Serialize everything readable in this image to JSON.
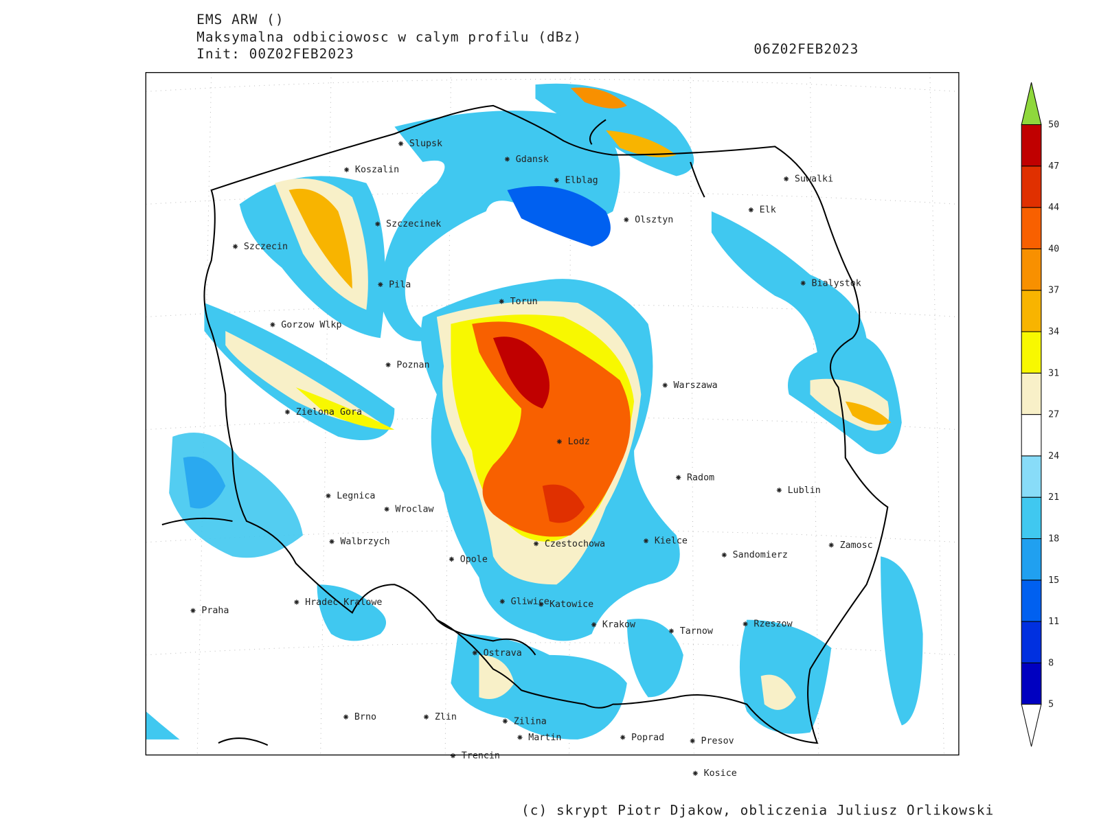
{
  "header": {
    "model": "EMS ARW ()",
    "product": "Maksymalna odbiciowosc w calym profilu (dBz)",
    "init": "Init: 00Z02FEB2023",
    "valid_time": "06Z02FEB2023"
  },
  "map": {
    "cities": [
      "Slupsk",
      "Koszalin",
      "Gdansk",
      "Elblag",
      "Suwalki",
      "Elk",
      "Olsztyn",
      "Szczecinek",
      "Szczecin",
      "Bialystok",
      "Pila",
      "Torun",
      "Gorzow Wlkp",
      "Poznan",
      "Warszawa",
      "Zielona Gora",
      "Lodz",
      "Radom",
      "Lublin",
      "Legnica",
      "Wroclaw",
      "Walbrzych",
      "Czestochowa",
      "Kielce",
      "Zamosc",
      "Opole",
      "Sandomierz",
      "Praha",
      "Hradec Kralowe",
      "Gliwice",
      "Katowice",
      "Krakow",
      "Tarnow",
      "Rzeszow",
      "Ostrava",
      "Brno",
      "Zlin",
      "Zilina",
      "Martin",
      "Poprad",
      "Presov",
      "Trencin",
      "Kosice"
    ]
  },
  "colorbar": {
    "levels": [
      5,
      8,
      11,
      15,
      18,
      21,
      24,
      27,
      31,
      34,
      37,
      40,
      44,
      47,
      50
    ],
    "colors": [
      "#0000c0",
      "#0030e0",
      "#0060f0",
      "#20a0f0",
      "#40c8f0",
      "#88dcf8",
      "#ffffff",
      "#f8f0c8",
      "#f8f800",
      "#f8b400",
      "#f89000",
      "#f86000",
      "#e03000",
      "#c00000"
    ],
    "under_color": "#ffffff",
    "over_color": "#8fd83c"
  },
  "footer": "(c) skrypt Piotr Djakow, obliczenia Juliusz Orlikowski"
}
